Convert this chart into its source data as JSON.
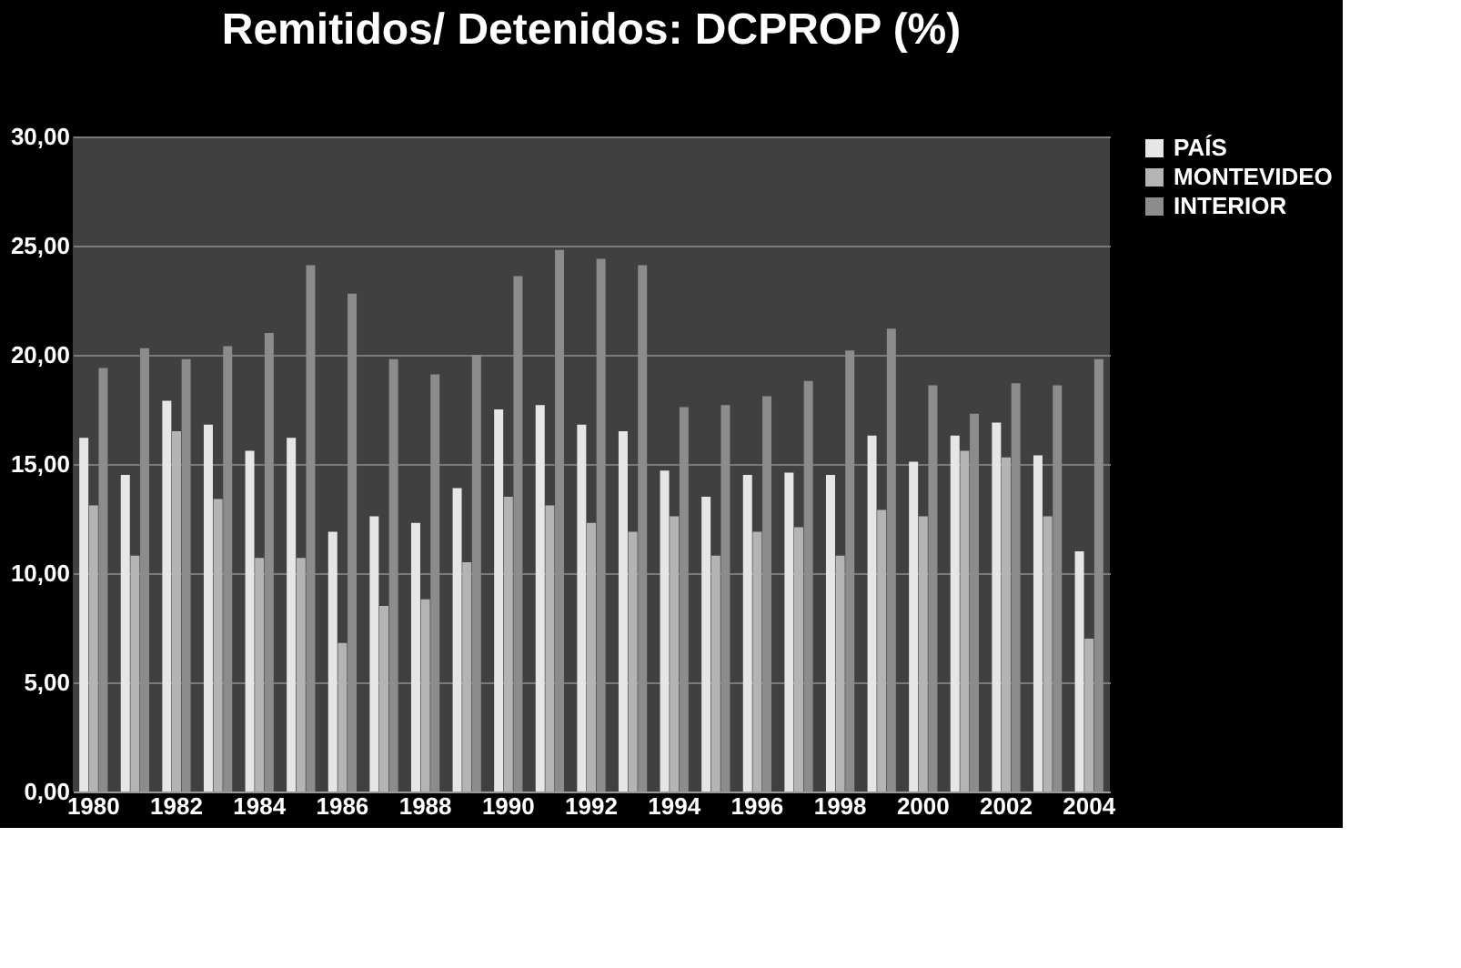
{
  "chart_data": {
    "type": "bar",
    "title": "Remitidos/ Detenidos: DCPROP (%)",
    "categories": [
      "1980",
      null,
      "1982",
      null,
      "1984",
      null,
      "1986",
      null,
      "1988",
      null,
      "1990",
      null,
      "1992",
      null,
      "1994",
      null,
      "1996",
      null,
      "1998",
      null,
      "2000",
      null,
      "2002",
      null,
      "2004"
    ],
    "series": [
      {
        "name": "PAÍS",
        "color": "#e6e6e6",
        "values": [
          16.2,
          14.5,
          17.9,
          16.8,
          15.6,
          16.2,
          11.9,
          12.6,
          12.3,
          13.9,
          17.5,
          17.7,
          16.8,
          16.5,
          14.7,
          13.5,
          14.5,
          14.6,
          14.5,
          16.3,
          15.1,
          16.3,
          16.9,
          15.4,
          11.0
        ]
      },
      {
        "name": "MONTEVIDEO",
        "color": "#b4b4b4",
        "values": [
          13.1,
          10.8,
          16.5,
          13.4,
          10.7,
          10.7,
          6.8,
          8.5,
          8.8,
          10.5,
          13.5,
          13.1,
          12.3,
          11.9,
          12.6,
          10.8,
          11.9,
          12.1,
          10.8,
          12.9,
          12.6,
          15.6,
          15.3,
          12.6,
          7.0
        ]
      },
      {
        "name": "INTERIOR",
        "color": "#8c8c8c",
        "values": [
          19.4,
          20.3,
          19.8,
          20.4,
          21.0,
          24.1,
          22.8,
          19.8,
          19.1,
          20.0,
          23.6,
          24.8,
          24.4,
          24.1,
          17.6,
          17.7,
          18.1,
          18.8,
          20.2,
          21.2,
          18.6,
          17.3,
          18.7,
          18.6,
          19.8
        ]
      }
    ],
    "ylim": [
      0,
      30
    ],
    "yticks": [
      {
        "value": 0,
        "label": "0,00"
      },
      {
        "value": 5,
        "label": "5,00"
      },
      {
        "value": 10,
        "label": "10,00"
      },
      {
        "value": 15,
        "label": "15,00"
      },
      {
        "value": 20,
        "label": "20,00"
      },
      {
        "value": 25,
        "label": "25,00"
      },
      {
        "value": 30,
        "label": "30,00"
      }
    ],
    "grid": "y",
    "legend": "right"
  }
}
